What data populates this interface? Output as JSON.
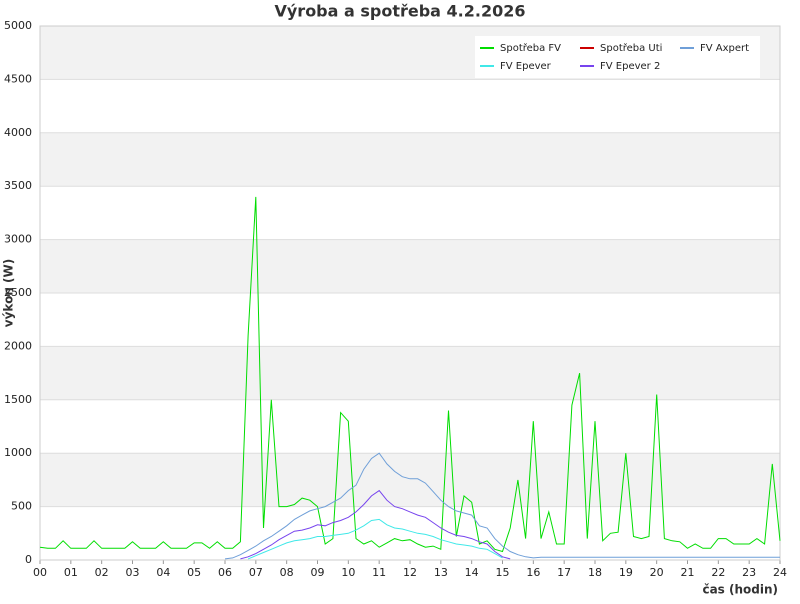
{
  "chart_data": {
    "type": "line",
    "title": "Výroba a spotřeba 4.2.2026",
    "x_label": "čas (hodin)",
    "y_label": "výkon (W)",
    "xlim": [
      0,
      24
    ],
    "xticks": [
      {
        "value": 0,
        "label": "00"
      },
      {
        "value": 1,
        "label": "01"
      },
      {
        "value": 2,
        "label": "02"
      },
      {
        "value": 3,
        "label": "03"
      },
      {
        "value": 4,
        "label": "04"
      },
      {
        "value": 5,
        "label": "05"
      },
      {
        "value": 6,
        "label": "06"
      },
      {
        "value": 7,
        "label": "07"
      },
      {
        "value": 8,
        "label": "08"
      },
      {
        "value": 9,
        "label": "09"
      },
      {
        "value": 10,
        "label": "10"
      },
      {
        "value": 11,
        "label": "11"
      },
      {
        "value": 12,
        "label": "12"
      },
      {
        "value": 13,
        "label": "13"
      },
      {
        "value": 14,
        "label": "14"
      },
      {
        "value": 15,
        "label": "15"
      },
      {
        "value": 16,
        "label": "16"
      },
      {
        "value": 17,
        "label": "17"
      },
      {
        "value": 18,
        "label": "18"
      },
      {
        "value": 19,
        "label": "19"
      },
      {
        "value": 20,
        "label": "20"
      },
      {
        "value": 21,
        "label": "21"
      },
      {
        "value": 22,
        "label": "22"
      },
      {
        "value": 23,
        "label": "23"
      },
      {
        "value": 24,
        "label": "24"
      }
    ],
    "ylim": [
      0,
      5000
    ],
    "yticks": [
      0,
      500,
      1000,
      1500,
      2000,
      2500,
      3000,
      3500,
      4000,
      4500,
      5000
    ],
    "grid": true,
    "legend": "upper right",
    "x": [
      0,
      0.25,
      0.5,
      0.75,
      1,
      1.25,
      1.5,
      1.75,
      2,
      2.25,
      2.5,
      2.75,
      3,
      3.25,
      3.5,
      3.75,
      4,
      4.25,
      4.5,
      4.75,
      5,
      5.25,
      5.5,
      5.75,
      6,
      6.25,
      6.5,
      6.75,
      7,
      7.25,
      7.5,
      7.75,
      8,
      8.25,
      8.5,
      8.75,
      9,
      9.25,
      9.5,
      9.75,
      10,
      10.25,
      10.5,
      10.75,
      11,
      11.25,
      11.5,
      11.75,
      12,
      12.25,
      12.5,
      12.75,
      13,
      13.25,
      13.5,
      13.75,
      14,
      14.25,
      14.5,
      14.75,
      15,
      15.25,
      15.5,
      15.75,
      16,
      16.25,
      16.5,
      16.75,
      17,
      17.25,
      17.5,
      17.75,
      18,
      18.25,
      18.5,
      18.75,
      19,
      19.25,
      19.5,
      19.75,
      20,
      20.25,
      20.5,
      20.75,
      21,
      21.25,
      21.5,
      21.75,
      22,
      22.25,
      22.5,
      22.75,
      23,
      23.25,
      23.5,
      23.75,
      24
    ],
    "series": [
      {
        "name": "Spotřeba FV",
        "color": "#00dd00",
        "values": [
          120,
          110,
          110,
          180,
          110,
          110,
          110,
          180,
          110,
          110,
          110,
          110,
          170,
          110,
          110,
          110,
          170,
          110,
          110,
          110,
          160,
          160,
          110,
          170,
          110,
          110,
          170,
          2100,
          3400,
          300,
          1500,
          500,
          500,
          520,
          580,
          560,
          500,
          150,
          200,
          1380,
          1300,
          200,
          150,
          180,
          120,
          160,
          200,
          180,
          190,
          150,
          120,
          130,
          100,
          1400,
          220,
          600,
          540,
          150,
          180,
          100,
          80,
          300,
          750,
          200,
          1300,
          200,
          450,
          150,
          150,
          1450,
          1750,
          200,
          1300,
          180,
          250,
          260,
          1000,
          220,
          200,
          220,
          1550,
          200,
          180,
          170,
          110,
          150,
          110,
          110,
          200,
          200,
          150,
          150,
          150,
          200,
          150,
          900,
          180
        ]
      },
      {
        "name": "Spotřeba Uti",
        "color": "#cc0000",
        "values": [
          null,
          null,
          null,
          null,
          null,
          null,
          null,
          null,
          null,
          null,
          null,
          null,
          null,
          null,
          null,
          null,
          null,
          null,
          null,
          null,
          null,
          null,
          null,
          null,
          null,
          null,
          null,
          null,
          null,
          null,
          null,
          null,
          null,
          null,
          null,
          null,
          null,
          null,
          null,
          null,
          null,
          null,
          null,
          null,
          null,
          null,
          null,
          null,
          null,
          null,
          null,
          null,
          null,
          null,
          null,
          null,
          null,
          null,
          null,
          null,
          null,
          null,
          null,
          null,
          null,
          null,
          null,
          null,
          null,
          null,
          null,
          null,
          null,
          null,
          null,
          null,
          null,
          null,
          null,
          null,
          null,
          null,
          null,
          null,
          null,
          null,
          null,
          null,
          null,
          null,
          null,
          null,
          null,
          null,
          null,
          null,
          null
        ]
      },
      {
        "name": "FV Axpert",
        "color": "#6f9fd8",
        "values": [
          null,
          null,
          null,
          null,
          null,
          null,
          null,
          null,
          null,
          null,
          null,
          null,
          null,
          null,
          null,
          null,
          null,
          null,
          null,
          null,
          null,
          null,
          null,
          null,
          10,
          20,
          50,
          90,
          130,
          180,
          220,
          270,
          320,
          380,
          420,
          460,
          480,
          500,
          540,
          580,
          650,
          700,
          850,
          950,
          1000,
          900,
          830,
          780,
          760,
          760,
          720,
          640,
          560,
          500,
          460,
          440,
          420,
          320,
          300,
          200,
          130,
          80,
          50,
          30,
          20,
          25,
          25,
          25,
          25,
          25,
          25,
          25,
          25,
          25,
          25,
          25,
          25,
          25,
          25,
          25,
          25,
          25,
          25,
          25,
          25,
          25,
          25,
          25,
          25,
          25,
          25,
          25,
          25,
          25,
          25,
          25,
          25
        ]
      },
      {
        "name": "FV Epever",
        "color": "#40e8e8",
        "values": [
          null,
          null,
          null,
          null,
          null,
          null,
          null,
          null,
          null,
          null,
          null,
          null,
          null,
          null,
          null,
          null,
          null,
          null,
          null,
          null,
          null,
          null,
          null,
          null,
          null,
          null,
          null,
          10,
          40,
          70,
          100,
          130,
          160,
          180,
          190,
          200,
          220,
          220,
          230,
          240,
          250,
          280,
          320,
          370,
          380,
          330,
          300,
          290,
          270,
          250,
          240,
          220,
          190,
          170,
          150,
          140,
          130,
          110,
          100,
          60,
          20,
          null,
          null,
          null,
          null,
          null,
          null,
          null,
          null,
          null,
          null,
          null,
          null,
          null,
          null,
          null,
          null,
          null,
          null,
          null,
          null,
          null,
          null,
          null,
          null,
          null,
          null,
          null,
          null,
          null,
          null,
          null,
          null,
          null,
          null,
          null,
          null
        ]
      },
      {
        "name": "FV Epever 2",
        "color": "#7744ee",
        "values": [
          null,
          null,
          null,
          null,
          null,
          null,
          null,
          null,
          null,
          null,
          null,
          null,
          null,
          null,
          null,
          null,
          null,
          null,
          null,
          null,
          null,
          null,
          null,
          null,
          null,
          null,
          10,
          30,
          60,
          100,
          140,
          190,
          230,
          270,
          280,
          300,
          330,
          320,
          350,
          370,
          400,
          450,
          520,
          600,
          650,
          560,
          500,
          480,
          450,
          420,
          400,
          350,
          300,
          260,
          230,
          220,
          200,
          170,
          150,
          80,
          30,
          10,
          null,
          null,
          null,
          null,
          null,
          null,
          null,
          null,
          null,
          null,
          null,
          null,
          null,
          null,
          null,
          null,
          null,
          null,
          null,
          null,
          null,
          null,
          null,
          null,
          null,
          null,
          null,
          null,
          null,
          null,
          null,
          null,
          null,
          null,
          null
        ]
      }
    ]
  }
}
